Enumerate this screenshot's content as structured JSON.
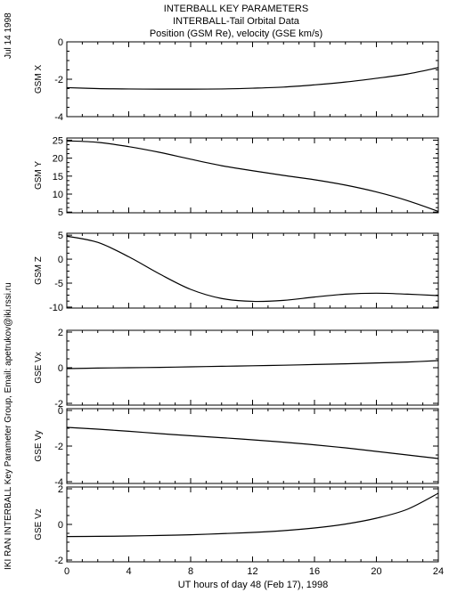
{
  "header": {
    "title_lines": [
      "INTERBALL KEY PARAMETERS",
      "INTERBALL-Tail Orbital Data",
      "Position (GSM Re), velocity (GSE km/s)"
    ]
  },
  "side_labels": {
    "date": "Jul 14 1998",
    "credit": "IKI RAN INTERBALL Key Parameter Group, Email: apetrukov@iki.rssi.ru"
  },
  "chart_data": {
    "type": "line",
    "xlabel": "UT hours of day  48 (Feb 17), 1998",
    "xlim": [
      0,
      24
    ],
    "xticks": [
      "0",
      "4",
      "8",
      "12",
      "16",
      "20",
      "24"
    ],
    "x": [
      0,
      2,
      4,
      6,
      8,
      10,
      12,
      14,
      16,
      18,
      20,
      22,
      24
    ],
    "panels": [
      {
        "name": "GSM X",
        "ylim": [
          -4,
          0
        ],
        "yticks": [
          "0",
          "-2",
          "-4"
        ],
        "values": [
          -2.45,
          -2.5,
          -2.52,
          -2.53,
          -2.53,
          -2.52,
          -2.48,
          -2.42,
          -2.3,
          -2.15,
          -1.95,
          -1.72,
          -1.38
        ]
      },
      {
        "name": "GSM Y",
        "ylim": [
          4.8,
          25.6
        ],
        "yticks": [
          "25",
          "20",
          "15",
          "10",
          "5"
        ],
        "values": [
          24.8,
          24.4,
          23.2,
          21.6,
          19.7,
          17.9,
          16.5,
          15.2,
          14.0,
          12.5,
          10.6,
          8.2,
          5.2
        ]
      },
      {
        "name": "GSM Z",
        "ylim": [
          -10.2,
          5.4
        ],
        "yticks": [
          "5",
          "0",
          "-5",
          "-10"
        ],
        "values": [
          4.8,
          3.5,
          0.5,
          -3.1,
          -6.3,
          -8.2,
          -8.8,
          -8.6,
          -7.9,
          -7.3,
          -7.1,
          -7.3,
          -7.6
        ]
      },
      {
        "name": "GSE Vx",
        "ylim": [
          -2.1,
          2.1
        ],
        "yticks": [
          "2",
          "0",
          "-2"
        ],
        "values": [
          -0.05,
          -0.02,
          0.0,
          0.02,
          0.05,
          0.08,
          0.11,
          0.14,
          0.18,
          0.22,
          0.27,
          0.32,
          0.4
        ]
      },
      {
        "name": "GSE Vy",
        "ylim": [
          -4.1,
          0.1
        ],
        "yticks": [
          "0",
          "-2",
          "-4"
        ],
        "values": [
          -0.95,
          -1.05,
          -1.17,
          -1.3,
          -1.42,
          -1.53,
          -1.65,
          -1.78,
          -1.93,
          -2.1,
          -2.3,
          -2.5,
          -2.7
        ]
      },
      {
        "name": "GSE Vz",
        "ylim": [
          -2.1,
          2.1
        ],
        "yticks": [
          "2",
          "0",
          "-2"
        ],
        "values": [
          -0.68,
          -0.67,
          -0.65,
          -0.62,
          -0.58,
          -0.52,
          -0.45,
          -0.35,
          -0.2,
          0.02,
          0.35,
          0.85,
          1.75
        ]
      }
    ]
  }
}
